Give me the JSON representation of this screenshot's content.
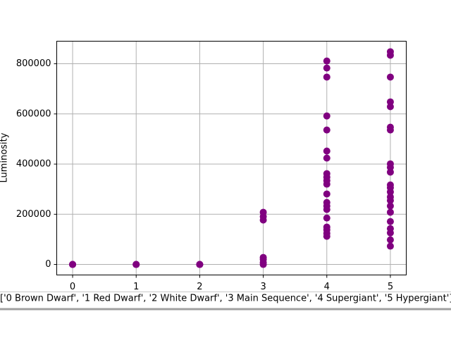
{
  "chart_data": {
    "type": "scatter",
    "x_label": "['0 Brown Dwarf', '1 Red Dwarf', '2 White Dwarf', '3 Main Sequence', '4 Supergiant', '5 Hypergiant']",
    "y_label": "Luminosity",
    "color": "#800080",
    "grid": true,
    "xlim": [
      -0.25,
      5.25
    ],
    "ylim": [
      -42000,
      890000
    ],
    "xticks": [
      0,
      1,
      2,
      3,
      4,
      5
    ],
    "yticks": [
      0,
      200000,
      400000,
      600000,
      800000
    ],
    "x": [
      0,
      0,
      0,
      1,
      1,
      1,
      2,
      2,
      2,
      3,
      3,
      3,
      3,
      3,
      3,
      3,
      4,
      4,
      4,
      4,
      4,
      4,
      4,
      4,
      4,
      4,
      4,
      4,
      4,
      4,
      4,
      4,
      4,
      4,
      4,
      4,
      5,
      5,
      5,
      5,
      5,
      5,
      5,
      5,
      5,
      5,
      5,
      5,
      5,
      5,
      5,
      5,
      5,
      5,
      5,
      5,
      5,
      5
    ],
    "values": [
      0,
      0,
      0,
      0,
      0,
      0,
      0,
      0,
      0,
      208000,
      191000,
      177000,
      28000,
      20000,
      8000,
      0,
      811000,
      783000,
      747000,
      592000,
      536000,
      452000,
      424000,
      362000,
      348000,
      334000,
      320000,
      281000,
      247000,
      233000,
      219000,
      185000,
      149000,
      138000,
      124000,
      112000,
      848000,
      834000,
      747000,
      648000,
      629000,
      547000,
      536000,
      401000,
      387000,
      368000,
      317000,
      306000,
      289000,
      269000,
      255000,
      233000,
      208000,
      171000,
      143000,
      126000,
      98000,
      73000
    ]
  }
}
